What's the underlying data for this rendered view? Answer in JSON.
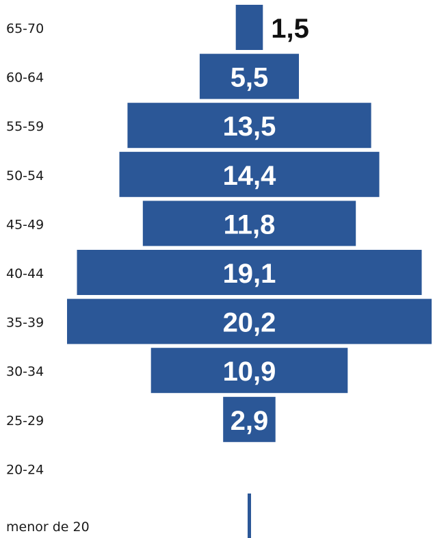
{
  "chart_data": {
    "type": "bar",
    "orientation": "horizontal",
    "layout": "centered-pyramid",
    "categories": [
      "65-70",
      "60-64",
      "55-59",
      "50-54",
      "45-49",
      "40-44",
      "35-39",
      "30-34",
      "25-29",
      "20-24",
      "menor de 20"
    ],
    "values": [
      1.5,
      5.5,
      13.5,
      14.4,
      11.8,
      19.1,
      20.2,
      10.9,
      2.9,
      0,
      0.2
    ],
    "value_labels": [
      "1,5",
      "5,5",
      "13,5",
      "14,4",
      "11,8",
      "19,1",
      "20,2",
      "10,9",
      "2,9",
      "",
      ""
    ],
    "title": "",
    "xlabel": "",
    "ylabel": "",
    "bar_color": "#2b5797",
    "label_inside_color": "#ffffff",
    "label_outside_color": "#111111",
    "grid": false,
    "legend": "none"
  }
}
